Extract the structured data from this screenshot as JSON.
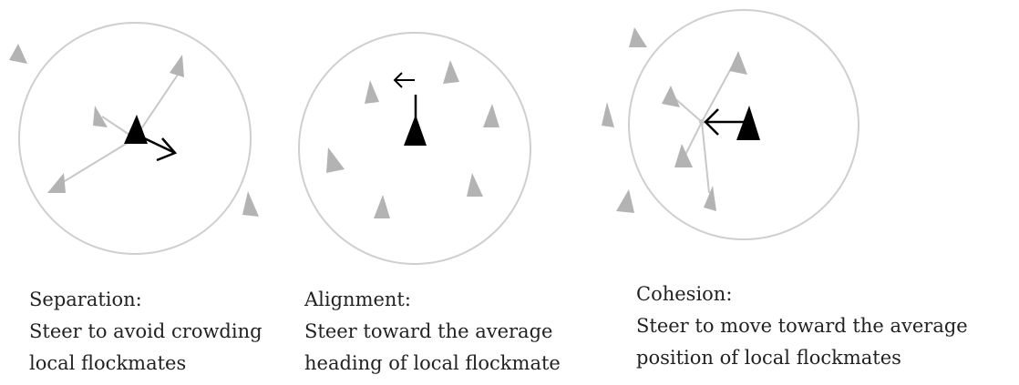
{
  "colors": {
    "circle": "#cfcfcf",
    "flockmate": "#b3b3b3",
    "boid": "#000000",
    "guide_line": "#c8c8c8",
    "arrow": "#000000",
    "text": "#222222"
  },
  "panels": [
    {
      "id": "separation",
      "title": "Separation:",
      "description_lines": [
        "Steer to avoid crowding",
        "local flockmates"
      ]
    },
    {
      "id": "alignment",
      "title": "Alignment:",
      "description_lines": [
        "Steer toward the average",
        "heading of local flockmate"
      ]
    },
    {
      "id": "cohesion",
      "title": "Cohesion:",
      "description_lines": [
        "Steer to move toward the average",
        "position of local flockmates"
      ]
    }
  ]
}
